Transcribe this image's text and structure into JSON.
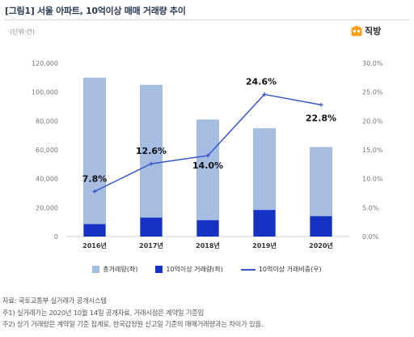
{
  "title": "[그림1] 서울 아파트, 10억이상 매매 거래량 추이",
  "unit": "(단위:건)",
  "logo_text": "직방",
  "colors": {
    "total_bar": "#a4bde0",
    "over1b_bar": "#1532c4",
    "ratio_line": "#3a57c9"
  },
  "chart_data": {
    "type": "bar",
    "categories": [
      "2016년",
      "2017년",
      "2018년",
      "2019년",
      "2020년"
    ],
    "series": [
      {
        "name": "총거래량(좌)",
        "type": "bar",
        "axis": "left",
        "values": [
          110000,
          105000,
          81000,
          75000,
          62000
        ]
      },
      {
        "name": "10억이상 거래량(좌)",
        "type": "bar",
        "axis": "left",
        "values": [
          8600,
          13100,
          11300,
          18400,
          14100
        ]
      },
      {
        "name": "10억이상 거래비중(우)",
        "type": "line",
        "axis": "right",
        "values": [
          7.8,
          12.6,
          14.0,
          24.6,
          22.8
        ]
      }
    ],
    "data_labels": [
      "7.8%",
      "12.6%",
      "14.0%",
      "24.6%",
      "22.8%"
    ],
    "left_axis": {
      "min": 0,
      "max": 120000,
      "ticks": [
        "0",
        "20,000",
        "40,000",
        "60,000",
        "80,000",
        "100,000",
        "120,000"
      ]
    },
    "right_axis": {
      "min": 0,
      "max": 30,
      "ticks": [
        "0.0%",
        "5.0%",
        "10.0%",
        "15.0%",
        "20.0%",
        "25.0%",
        "30.0%"
      ]
    },
    "grid": false,
    "legend_position": "bottom"
  },
  "notes": [
    "자료: 국토교통부 실거래가 공개시스템",
    "주1) 실거래가는 2020년 10월 14일 공개자료, 거래시점은 계약일 기준임",
    "주2) 상기 거래량은 계약일 기준 집계로, 한국감정원 신고일 기준의 매매거래량과는 차이가 있음."
  ]
}
